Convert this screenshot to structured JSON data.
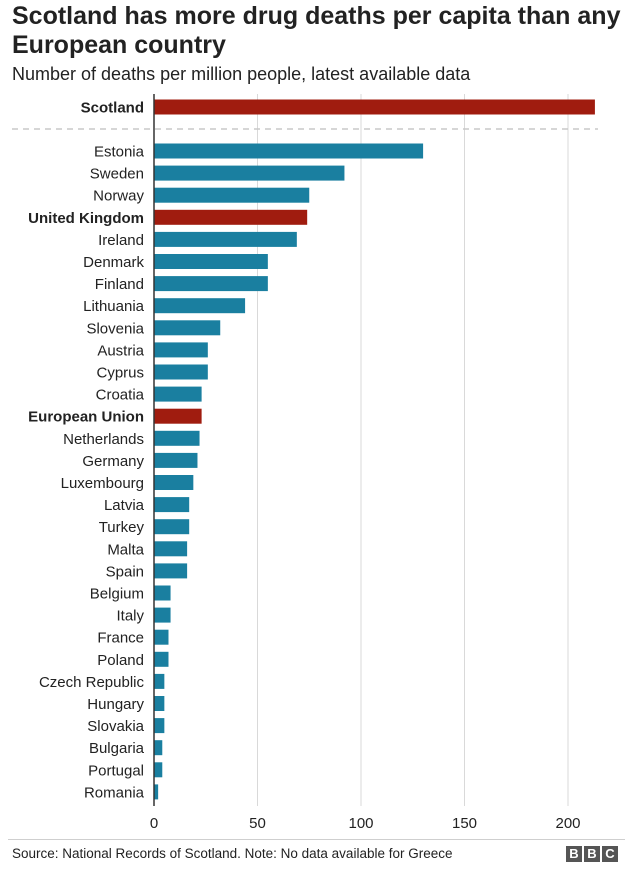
{
  "chart_data": {
    "type": "bar",
    "orientation": "horizontal",
    "title": "Scotland has more drug deaths per capita than any European country",
    "subtitle": "Number of deaths per million people, latest available data",
    "xlabel": "",
    "ylabel": "",
    "xlim": [
      0,
      220
    ],
    "xticks": [
      "0",
      "50",
      "100",
      "150",
      "200"
    ],
    "grid": true,
    "highlight_color": "#a01c0f",
    "bar_color": "#1a7fa0",
    "categories": [
      "Scotland",
      "Estonia",
      "Sweden",
      "Norway",
      "United Kingdom",
      "Ireland",
      "Denmark",
      "Finland",
      "Lithuania",
      "Slovenia",
      "Austria",
      "Cyprus",
      "Croatia",
      "European Union",
      "Netherlands",
      "Germany",
      "Luxembourg",
      "Latvia",
      "Turkey",
      "Malta",
      "Spain",
      "Belgium",
      "Italy",
      "France",
      "Poland",
      "Czech Republic",
      "Hungary",
      "Slovakia",
      "Bulgaria",
      "Portugal",
      "Romania"
    ],
    "values": [
      213,
      130,
      92,
      75,
      74,
      69,
      55,
      55,
      44,
      32,
      26,
      26,
      23,
      23,
      22,
      21,
      19,
      17,
      17,
      16,
      16,
      8,
      8,
      7,
      7,
      5,
      5,
      5,
      4,
      4,
      2
    ],
    "highlighted": [
      "Scotland",
      "United Kingdom",
      "European Union"
    ]
  },
  "footer": {
    "source": "Source: National Records of Scotland. Note: No data available for Greece",
    "logo_letters": [
      "B",
      "B",
      "C"
    ]
  }
}
